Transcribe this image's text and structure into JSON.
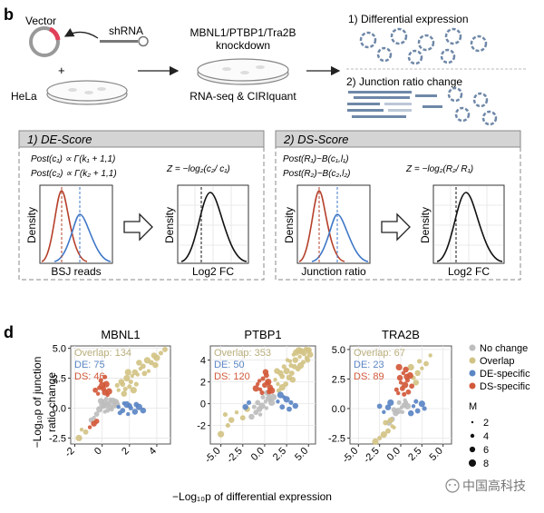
{
  "panel_b": {
    "label": "b",
    "vector": "Vector",
    "shrna": "shRNA",
    "plus": "+",
    "hela": "HeLa",
    "knockdown_line1": "MBNL1/PTBP1/Tra2B",
    "knockdown_line2": "knockdown",
    "seq_label": "RNA-seq & CIRIquant",
    "out1": "1) Differential expression",
    "out2": "2) Junction ratio change",
    "de_box": {
      "title": "1) DE-Score",
      "post1": "Post(c₁) ∝ Γ(k₁ + 1,1)",
      "post2": "Post(c₂) ∝ Γ(k₂ + 1,1)",
      "zeq": "Z = −log₂(c₂/ c₁)",
      "ylabel": "Density",
      "xlabel1": "BSJ reads",
      "xlabel2": "Log2 FC"
    },
    "ds_box": {
      "title": "2) DS-Score",
      "post1": "Post(R₁)~B(c₁,l₁)",
      "post2": "Post(R₂)~B(c₂,l₂)",
      "zeq": "Z = −log₂(R₂/ R₁)",
      "ylabel": "Density",
      "xlabel1": "Junction ratio",
      "xlabel2": "Log2 FC"
    }
  },
  "panel_d": {
    "label": "d",
    "ylabel_line1": "−Log₁₀p of junction",
    "ylabel_line2": "ratio change",
    "xlabel": "−Log₁₀p of differential expression",
    "legend": {
      "items": [
        {
          "label": "No change",
          "color": "#bdbdbd"
        },
        {
          "label": "Overlap",
          "color": "#d2c384"
        },
        {
          "label": "DE-specific",
          "color": "#5b86c4"
        },
        {
          "label": "DS-specific",
          "color": "#d2593a"
        }
      ],
      "size_title": "M",
      "sizes": [
        "2",
        "4",
        "6",
        "8"
      ]
    },
    "watermark": "中国高科技"
  },
  "chart_data": [
    {
      "type": "scatter",
      "title": "MBNL1",
      "xlim": [
        -2.3,
        5.0
      ],
      "ylim": [
        -3.0,
        5.2
      ],
      "x_ticks": [
        "-2",
        "0",
        "2",
        "4"
      ],
      "x_tick_values": [
        -2,
        0,
        2,
        4
      ],
      "y_ticks": [
        "-2.5",
        "0.0",
        "2.5",
        "5.0"
      ],
      "y_tick_values": [
        -2.5,
        0,
        2.5,
        5
      ],
      "annotations": [
        "Overlap: 134",
        "DE: 75",
        "DS: 46"
      ],
      "series": [
        {
          "name": "No change",
          "points": [
            [
              0.1,
              0.1
            ],
            [
              0.3,
              0.2
            ],
            [
              -0.2,
              -0.1
            ],
            [
              0.5,
              0.4
            ],
            [
              0.6,
              0.1
            ],
            [
              0.2,
              -0.3
            ],
            [
              -0.4,
              -0.5
            ],
            [
              0.8,
              0.6
            ],
            [
              0.4,
              -0.2
            ],
            [
              0.0,
              0.3
            ],
            [
              -0.6,
              -0.8
            ],
            [
              0.9,
              0.2
            ],
            [
              1.0,
              0.5
            ],
            [
              0.7,
              -0.1
            ],
            [
              -0.1,
              0.6
            ],
            [
              0.3,
              0.8
            ],
            [
              -0.8,
              -1.0
            ],
            [
              0.2,
              0.5
            ],
            [
              0.6,
              0.7
            ],
            [
              1.1,
              0.3
            ]
          ]
        },
        {
          "name": "Overlap",
          "points": [
            [
              1.2,
              1.5
            ],
            [
              1.5,
              2.0
            ],
            [
              1.8,
              2.5
            ],
            [
              2.1,
              2.2
            ],
            [
              2.4,
              3.0
            ],
            [
              2.6,
              2.8
            ],
            [
              3.0,
              3.5
            ],
            [
              3.3,
              4.0
            ],
            [
              2.0,
              1.8
            ],
            [
              1.6,
              1.2
            ],
            [
              2.8,
              3.3
            ],
            [
              3.6,
              3.8
            ],
            [
              4.0,
              4.2
            ],
            [
              4.3,
              4.6
            ],
            [
              1.4,
              2.2
            ],
            [
              2.2,
              2.7
            ],
            [
              3.1,
              2.9
            ],
            [
              1.9,
              3.0
            ],
            [
              2.5,
              2.0
            ],
            [
              3.8,
              4.4
            ],
            [
              -1.5,
              -1.8
            ],
            [
              -1.2,
              -2.0
            ],
            [
              -1.7,
              -2.5
            ],
            [
              1.1,
              1.9
            ],
            [
              2.7,
              3.8
            ],
            [
              3.4,
              3.1
            ],
            [
              4.6,
              4.9
            ],
            [
              2.3,
              1.5
            ],
            [
              1.7,
              1.6
            ],
            [
              3.9,
              3.6
            ]
          ]
        },
        {
          "name": "DE-specific",
          "points": [
            [
              1.2,
              0.1
            ],
            [
              1.5,
              -0.2
            ],
            [
              1.8,
              0.3
            ],
            [
              2.1,
              0.0
            ],
            [
              2.4,
              -0.3
            ],
            [
              1.6,
              0.4
            ],
            [
              2.0,
              0.2
            ],
            [
              2.7,
              0.1
            ],
            [
              1.3,
              -0.4
            ],
            [
              3.0,
              -0.2
            ],
            [
              1.9,
              -0.5
            ],
            [
              2.5,
              0.3
            ]
          ]
        },
        {
          "name": "DS-specific",
          "points": [
            [
              -0.3,
              1.2
            ],
            [
              0.1,
              1.6
            ],
            [
              0.3,
              2.0
            ],
            [
              -0.1,
              2.3
            ],
            [
              0.2,
              1.3
            ],
            [
              0.4,
              1.1
            ],
            [
              -0.5,
              1.5
            ],
            [
              0.0,
              1.9
            ],
            [
              0.2,
              2.6
            ],
            [
              -0.6,
              -1.3
            ],
            [
              -0.9,
              -1.6
            ],
            [
              -0.4,
              -1.1
            ],
            [
              0.5,
              1.4
            ],
            [
              -0.2,
              1.7
            ]
          ]
        }
      ]
    },
    {
      "type": "scatter",
      "title": "PTBP1",
      "xlim": [
        -6.2,
        5.8
      ],
      "ylim": [
        -3.7,
        5.3
      ],
      "x_ticks": [
        "-5.0",
        "-2.5",
        "0.0",
        "2.5",
        "5.0"
      ],
      "x_tick_values": [
        -5,
        -2.5,
        0,
        2.5,
        5
      ],
      "y_ticks": [
        "-2",
        "0",
        "2",
        "4"
      ],
      "y_tick_values": [
        -2,
        0,
        2,
        4
      ],
      "annotations": [
        "Overlap: 353",
        "DE: 50",
        "DS: 120"
      ],
      "series": [
        {
          "name": "No change",
          "points": [
            [
              0.1,
              0.2
            ],
            [
              0.4,
              0.5
            ],
            [
              -0.3,
              -0.2
            ],
            [
              0.6,
              0.3
            ],
            [
              -0.6,
              -0.5
            ],
            [
              0.2,
              -0.4
            ],
            [
              -1.0,
              -0.8
            ],
            [
              0.8,
              0.1
            ],
            [
              -0.2,
              0.6
            ],
            [
              -1.5,
              -1.2
            ],
            [
              0.5,
              0.8
            ],
            [
              -0.8,
              0.1
            ],
            [
              1.0,
              0.6
            ],
            [
              -1.2,
              -0.3
            ],
            [
              0.3,
              1.0
            ],
            [
              -0.5,
              -1.0
            ]
          ]
        },
        {
          "name": "Overlap",
          "points": [
            [
              1.5,
              1.8
            ],
            [
              2.0,
              2.5
            ],
            [
              2.5,
              3.0
            ],
            [
              3.0,
              3.5
            ],
            [
              3.5,
              4.0
            ],
            [
              4.0,
              4.3
            ],
            [
              4.5,
              4.6
            ],
            [
              5.0,
              4.9
            ],
            [
              2.2,
              3.4
            ],
            [
              2.8,
              2.4
            ],
            [
              3.3,
              4.5
            ],
            [
              3.8,
              3.2
            ],
            [
              4.2,
              4.8
            ],
            [
              4.8,
              4.2
            ],
            [
              1.8,
              2.8
            ],
            [
              2.6,
              4.0
            ],
            [
              3.1,
              2.8
            ],
            [
              3.6,
              4.7
            ],
            [
              4.4,
              3.8
            ],
            [
              5.2,
              4.5
            ],
            [
              1.2,
              2.2
            ],
            [
              2.4,
              1.8
            ],
            [
              3.9,
              4.9
            ],
            [
              4.7,
              5.0
            ],
            [
              1.4,
              3.0
            ],
            [
              2.9,
              3.9
            ],
            [
              3.4,
              3.4
            ],
            [
              4.1,
              3.5
            ],
            [
              -4.5,
              -1.0
            ],
            [
              -3.8,
              -1.5
            ],
            [
              -3.2,
              -0.8
            ],
            [
              -2.5,
              -1.3
            ],
            [
              -5.0,
              -2.8
            ],
            [
              -4.2,
              -2.0
            ],
            [
              -2.0,
              -0.5
            ],
            [
              5.1,
              4.8
            ],
            [
              4.9,
              4.0
            ],
            [
              2.0,
              1.5
            ],
            [
              1.6,
              1.2
            ],
            [
              3.2,
              2.2
            ]
          ]
        },
        {
          "name": "DE-specific",
          "points": [
            [
              1.5,
              0.2
            ],
            [
              2.0,
              -0.3
            ],
            [
              2.5,
              0.4
            ],
            [
              3.0,
              0.1
            ],
            [
              3.5,
              -0.2
            ],
            [
              2.2,
              0.6
            ],
            [
              2.8,
              -0.5
            ],
            [
              1.8,
              0.8
            ],
            [
              -1.8,
              0.1
            ],
            [
              -2.2,
              -0.3
            ]
          ]
        },
        {
          "name": "DS-specific",
          "points": [
            [
              -0.5,
              1.3
            ],
            [
              0.0,
              1.7
            ],
            [
              0.4,
              2.0
            ],
            [
              -0.2,
              2.3
            ],
            [
              0.6,
              1.5
            ],
            [
              -0.8,
              1.8
            ],
            [
              0.2,
              2.6
            ],
            [
              0.8,
              1.2
            ],
            [
              -0.3,
              1.0
            ],
            [
              0.1,
              2.9
            ],
            [
              -0.6,
              2.1
            ],
            [
              0.5,
              1.1
            ],
            [
              -1.0,
              1.4
            ],
            [
              0.3,
              1.9
            ]
          ]
        }
      ]
    },
    {
      "type": "scatter",
      "title": "TRA2B",
      "xlim": [
        -6.0,
        6.0
      ],
      "ylim": [
        -3.0,
        5.3
      ],
      "x_ticks": [
        "-5.0",
        "-2.5",
        "0.0",
        "2.5",
        "5.0"
      ],
      "x_tick_values": [
        -5,
        -2.5,
        0,
        2.5,
        5
      ],
      "y_ticks": [
        "-2.5",
        "0.0",
        "2.5",
        "5.0"
      ],
      "y_tick_values": [
        -2.5,
        0,
        2.5,
        5
      ],
      "annotations": [
        "Overlap: 67",
        "DE: 23",
        "DS: 89"
      ],
      "series": [
        {
          "name": "No change",
          "points": [
            [
              0.1,
              0.1
            ],
            [
              0.4,
              0.3
            ],
            [
              -0.3,
              -0.2
            ],
            [
              0.6,
              0.5
            ],
            [
              -0.6,
              -0.4
            ],
            [
              0.2,
              -0.3
            ],
            [
              -1.0,
              -0.9
            ],
            [
              0.8,
              0.2
            ],
            [
              -0.2,
              0.5
            ],
            [
              -1.4,
              -1.2
            ],
            [
              0.5,
              0.7
            ],
            [
              -0.8,
              -0.1
            ]
          ]
        },
        {
          "name": "Overlap",
          "points": [
            [
              -1.0,
              -1.5
            ],
            [
              -1.5,
              -1.9
            ],
            [
              -2.0,
              -2.2
            ],
            [
              -2.5,
              -2.5
            ],
            [
              -1.2,
              -1.0
            ],
            [
              -0.8,
              -1.6
            ],
            [
              -1.8,
              -1.2
            ],
            [
              -3.0,
              -2.8
            ],
            [
              1.5,
              2.6
            ],
            [
              2.0,
              3.0
            ],
            [
              2.5,
              3.4
            ],
            [
              3.0,
              3.8
            ],
            [
              1.2,
              3.5
            ],
            [
              2.2,
              4.0
            ],
            [
              1.8,
              2.2
            ],
            [
              3.5,
              4.5
            ]
          ]
        },
        {
          "name": "DE-specific",
          "points": [
            [
              1.5,
              0.2
            ],
            [
              2.0,
              -0.2
            ],
            [
              2.5,
              0.4
            ],
            [
              1.8,
              0.6
            ],
            [
              -1.5,
              0.1
            ],
            [
              -2.0,
              -0.3
            ],
            [
              -2.5,
              0.2
            ],
            [
              -1.2,
              0.5
            ],
            [
              2.8,
              0.0
            ],
            [
              1.2,
              -0.4
            ]
          ]
        },
        {
          "name": "DS-specific",
          "points": [
            [
              -0.3,
              1.3
            ],
            [
              0.2,
              1.7
            ],
            [
              0.5,
              2.0
            ],
            [
              0.8,
              2.4
            ],
            [
              -0.1,
              2.6
            ],
            [
              0.3,
              3.0
            ],
            [
              0.9,
              1.4
            ],
            [
              1.1,
              2.8
            ],
            [
              -0.5,
              1.6
            ],
            [
              0.6,
              3.3
            ],
            [
              0.0,
              2.2
            ],
            [
              1.3,
              1.9
            ],
            [
              -0.2,
              3.5
            ],
            [
              0.4,
              1.2
            ],
            [
              0.7,
              2.7
            ]
          ]
        }
      ]
    }
  ]
}
